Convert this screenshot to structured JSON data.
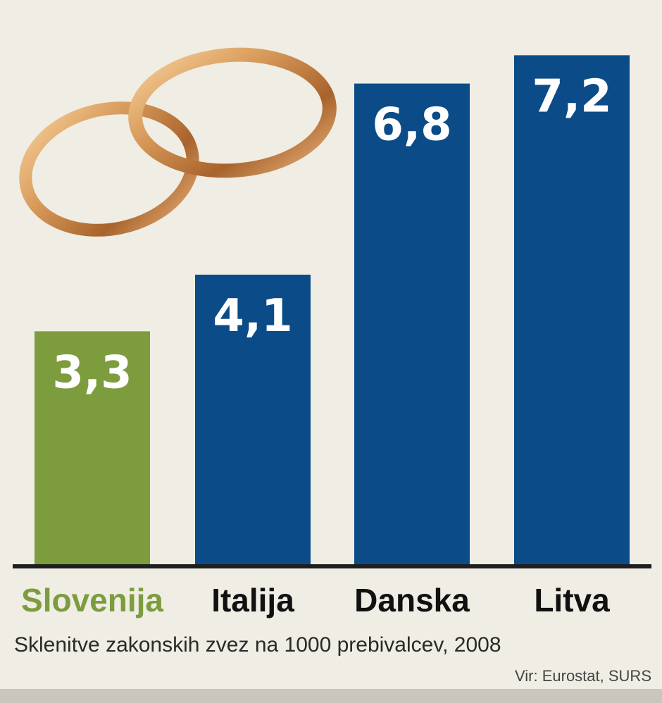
{
  "chart_data": {
    "type": "bar",
    "categories": [
      "Slovenija",
      "Italija",
      "Danska",
      "Litva"
    ],
    "values": [
      3.3,
      4.1,
      6.8,
      7.2
    ],
    "value_labels": [
      "3,3",
      "4,1",
      "6,8",
      "7,2"
    ],
    "title": "",
    "subtitle": "Sklenitve zakonskih zvez na 1000 prebivalcev, 2008",
    "source": "Vir: Eurostat, SURS",
    "xlabel": "",
    "ylabel": "",
    "ylim": [
      0,
      7.8
    ],
    "grid": false,
    "colors": [
      "#7c9c3e",
      "#0b4c88",
      "#0b4c88",
      "#0b4c88"
    ],
    "highlight_color": "#7c9c3e",
    "decoration_icon": "wedding-rings-icon"
  }
}
